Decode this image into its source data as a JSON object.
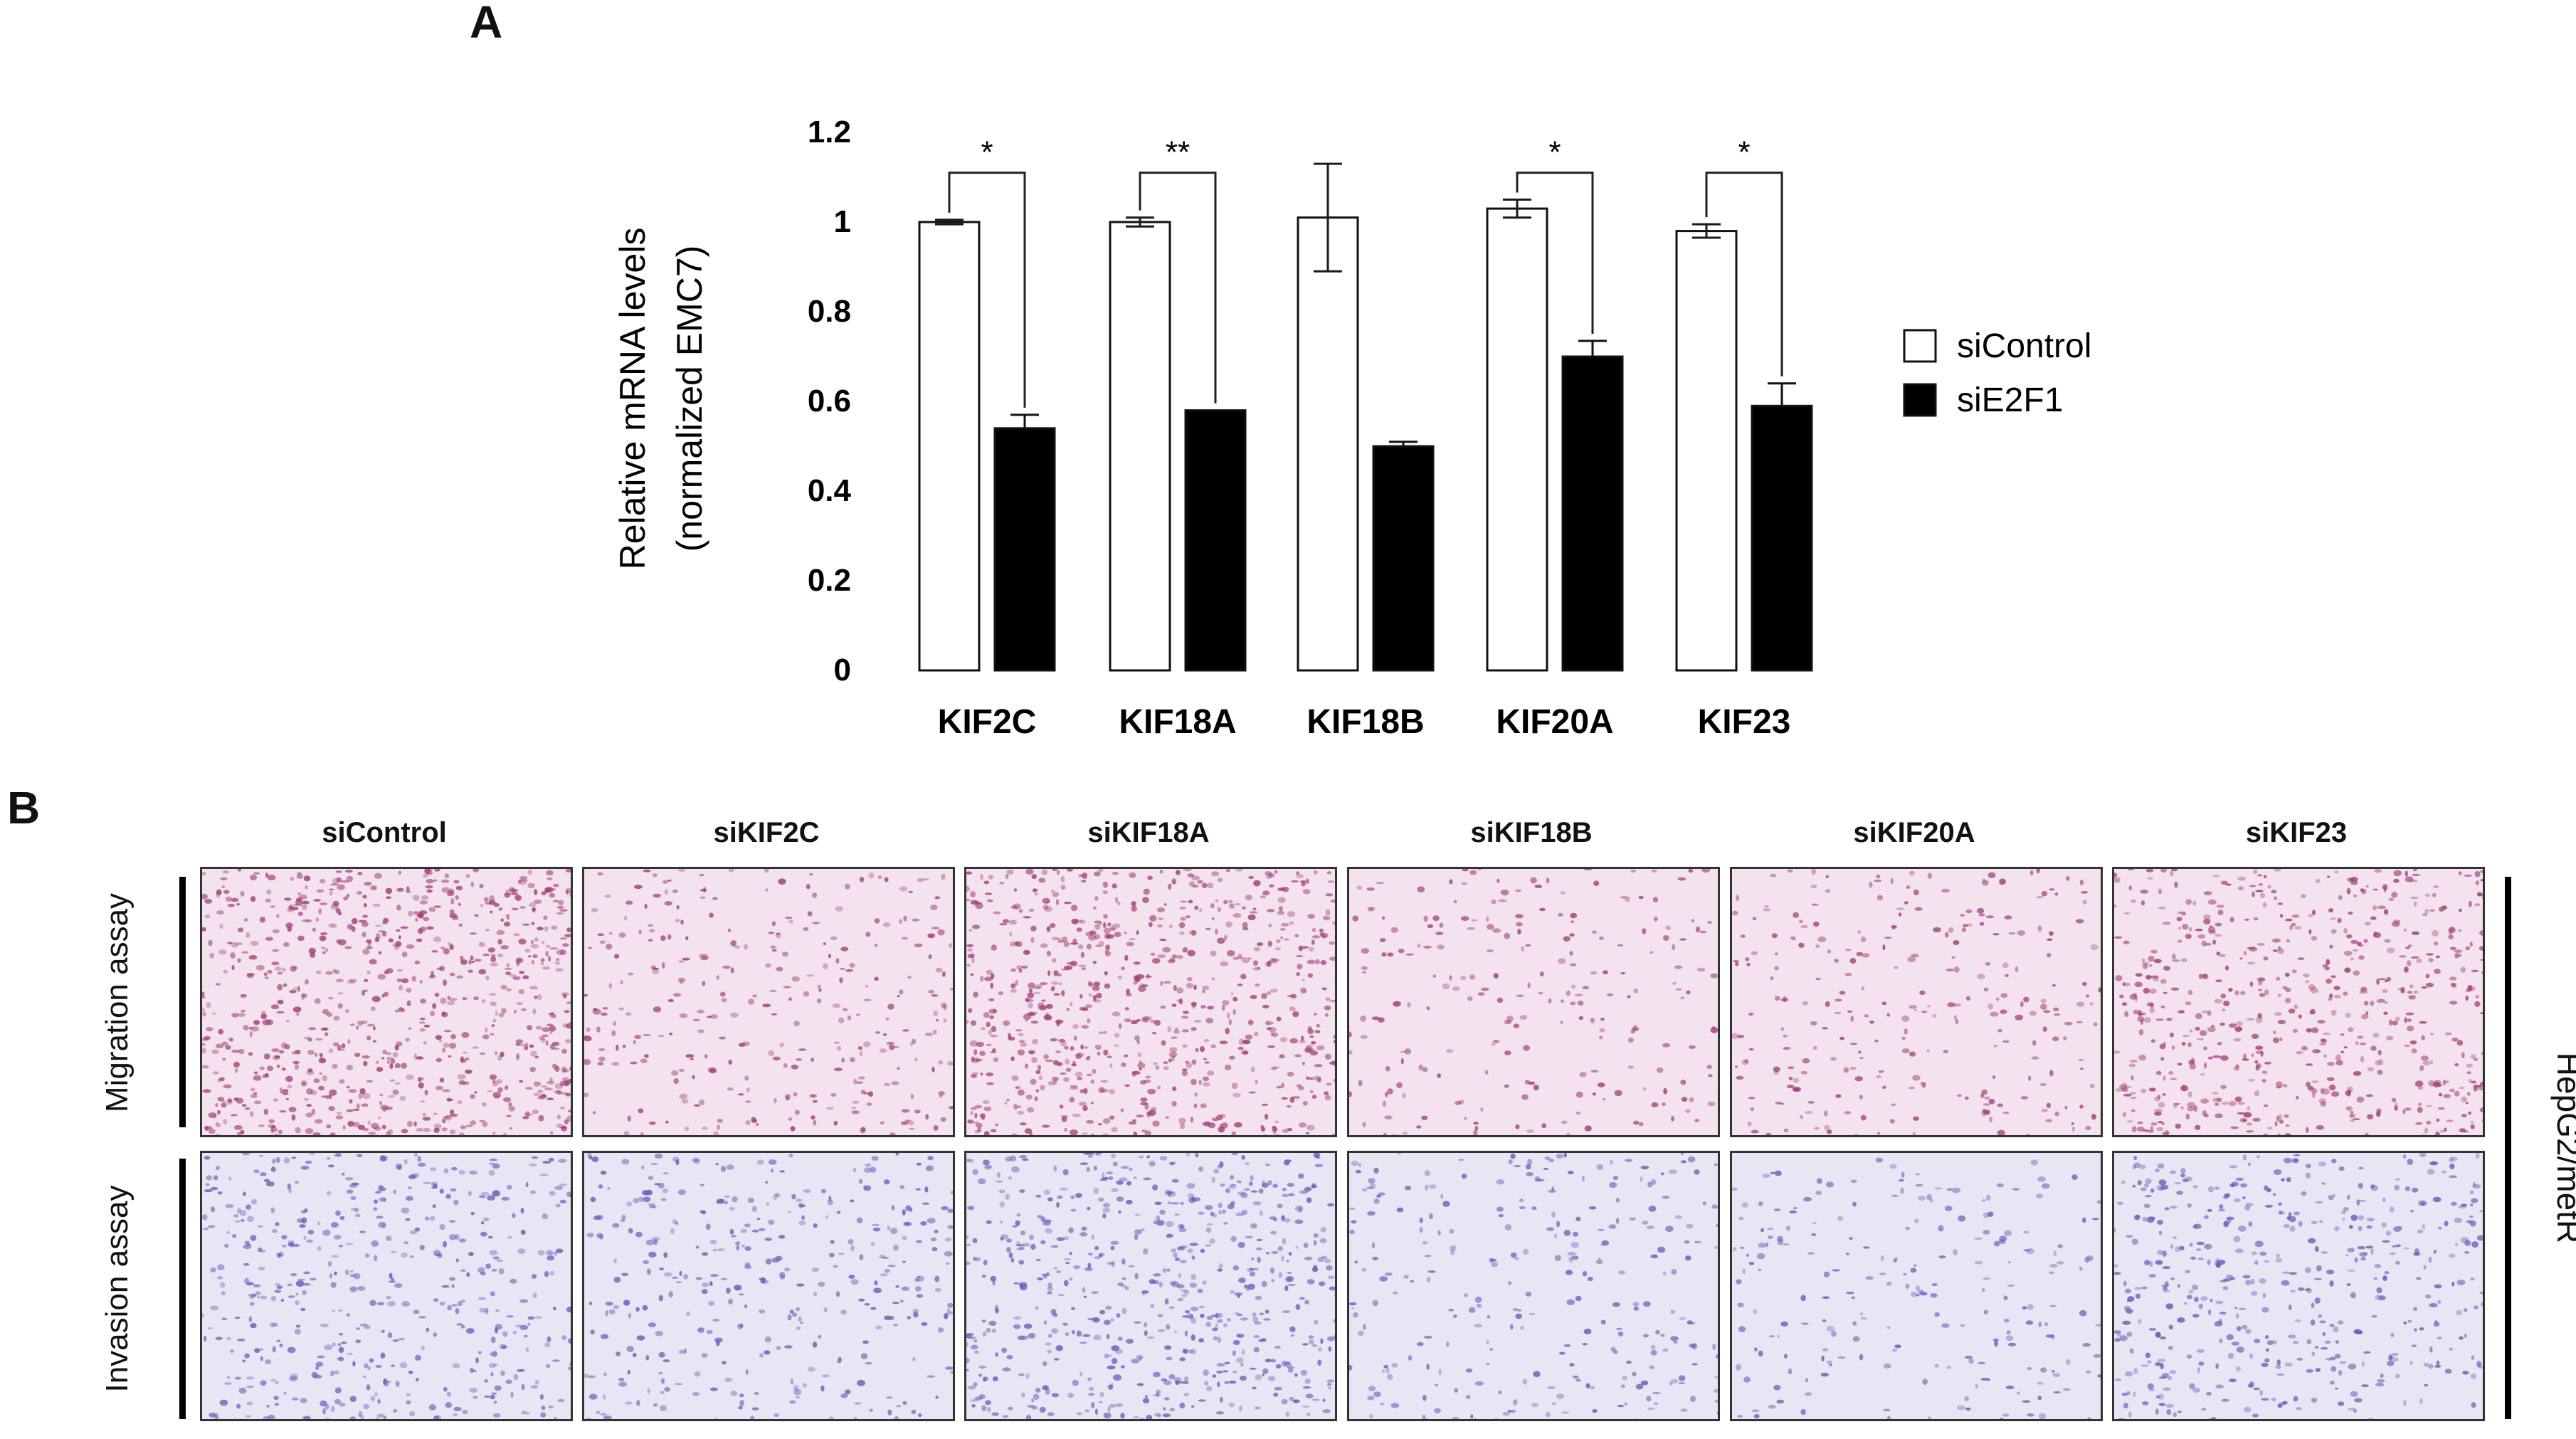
{
  "panel_a": {
    "letter": "A"
  },
  "panel_b": {
    "letter": "B",
    "column_labels": [
      "siControl",
      "siKIF2C",
      "siKIF18A",
      "siKIF18B",
      "siKIF20A",
      "siKIF23"
    ],
    "row_labels": [
      "Migration assay",
      "Invasion assay"
    ],
    "side_label": "HepG2/metR",
    "colors": {
      "migration_bg": "#f4e3ef",
      "migration_cell": "#a0407a",
      "invasion_bg": "#e7e6f4",
      "invasion_cell": "#6a5fb8"
    },
    "densities": [
      [
        0.9,
        0.35,
        0.85,
        0.25,
        0.3,
        0.7
      ],
      [
        0.55,
        0.4,
        0.7,
        0.3,
        0.25,
        0.55
      ]
    ]
  },
  "chart_data": {
    "type": "bar",
    "categories": [
      "KIF2C",
      "KIF18A",
      "KIF18B",
      "KIF20A",
      "KIF23"
    ],
    "series": [
      {
        "name": "siControl",
        "values": [
          1.0,
          1.0,
          1.01,
          1.03,
          0.98
        ],
        "errors": [
          0.005,
          0.01,
          0.12,
          0.02,
          0.015
        ],
        "color": "#ffffff"
      },
      {
        "name": "siE2F1",
        "values": [
          0.54,
          0.58,
          0.5,
          0.7,
          0.59
        ],
        "errors": [
          0.03,
          0.0,
          0.01,
          0.035,
          0.05
        ],
        "color": "#000000"
      }
    ],
    "significance": [
      "*",
      "**",
      "",
      "*",
      "*"
    ],
    "ylabel": "Relative mRNA levels (normalized EMC7)",
    "ylabel_lines": [
      "Relative mRNA levels",
      "(normalized EMC7)"
    ],
    "ylim": [
      0,
      1.2
    ],
    "yticks": [
      "0",
      "0.2",
      "0.4",
      "0.6",
      "0.8",
      "1",
      "1.2"
    ],
    "grid": false,
    "legend_position": "right"
  }
}
